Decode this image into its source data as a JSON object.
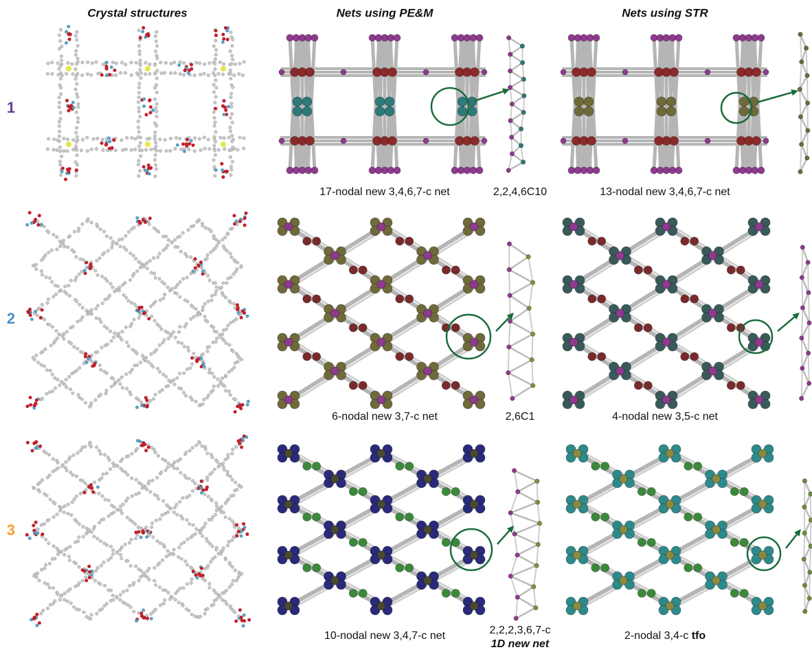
{
  "headers": [
    "Crystal structures",
    "Nets using PE&M",
    "Nets using STR"
  ],
  "rows": [
    {
      "label": "1",
      "pem_caption": "17-nodal new 3,4,6,7-c net",
      "chain_caption": "2,2,4,6C10",
      "str_caption": "13-nodal new 3,4,6,7-c net"
    },
    {
      "label": "2",
      "pem_caption": "6-nodal new 3,7-c net",
      "chain_caption": "2,6C1",
      "str_caption": "4-nodal new 3,5-c net"
    },
    {
      "label": "3",
      "pem_caption": "10-nodal new 3,4,7-c net",
      "chain_caption": "2,2,2,3,6,7-c",
      "chain_note": "1D new net",
      "str_caption": "2-nodal 3,4-c ",
      "str_caption_bold": "tfo"
    }
  ]
}
